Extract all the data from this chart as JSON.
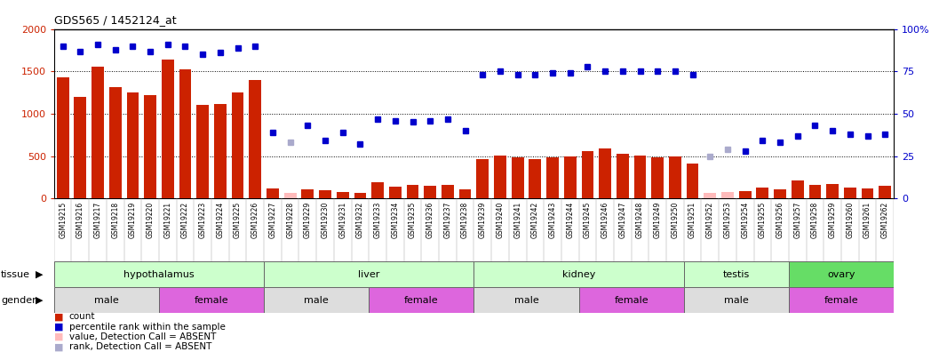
{
  "title": "GDS565 / 1452124_at",
  "samples": [
    "GSM19215",
    "GSM19216",
    "GSM19217",
    "GSM19218",
    "GSM19219",
    "GSM19220",
    "GSM19221",
    "GSM19222",
    "GSM19223",
    "GSM19224",
    "GSM19225",
    "GSM19226",
    "GSM19227",
    "GSM19228",
    "GSM19229",
    "GSM19230",
    "GSM19231",
    "GSM19232",
    "GSM19233",
    "GSM19234",
    "GSM19235",
    "GSM19236",
    "GSM19237",
    "GSM19238",
    "GSM19239",
    "GSM19240",
    "GSM19241",
    "GSM19242",
    "GSM19243",
    "GSM19244",
    "GSM19245",
    "GSM19246",
    "GSM19247",
    "GSM19248",
    "GSM19249",
    "GSM19250",
    "GSM19251",
    "GSM19252",
    "GSM19253",
    "GSM19254",
    "GSM19255",
    "GSM19256",
    "GSM19257",
    "GSM19258",
    "GSM19259",
    "GSM19260",
    "GSM19261",
    "GSM19262"
  ],
  "counts": [
    1430,
    1200,
    1560,
    1310,
    1250,
    1220,
    1640,
    1530,
    1100,
    1120,
    1250,
    1400,
    120,
    65,
    110,
    95,
    80,
    60,
    190,
    140,
    160,
    150,
    155,
    105,
    460,
    510,
    480,
    460,
    480,
    500,
    560,
    590,
    530,
    510,
    490,
    500,
    415,
    65,
    80,
    90,
    130,
    105,
    210,
    155,
    165,
    125,
    115,
    145
  ],
  "percentile_ranks": [
    90,
    87,
    91,
    88,
    90,
    87,
    91,
    90,
    85,
    86,
    89,
    90,
    39,
    33,
    43,
    34,
    39,
    32,
    47,
    46,
    45,
    46,
    47,
    40,
    73,
    75,
    73,
    73,
    74,
    74,
    78,
    75,
    75,
    75,
    75,
    75,
    73,
    25,
    29,
    28,
    34,
    33,
    37,
    43,
    40,
    38,
    37,
    38
  ],
  "absent_call": [
    false,
    false,
    false,
    false,
    false,
    false,
    false,
    false,
    false,
    false,
    false,
    false,
    false,
    true,
    false,
    false,
    false,
    false,
    false,
    false,
    false,
    false,
    false,
    false,
    false,
    false,
    false,
    false,
    false,
    false,
    false,
    false,
    false,
    false,
    false,
    false,
    false,
    true,
    true,
    false,
    false,
    false,
    false,
    false,
    false,
    false,
    false,
    false
  ],
  "tissues": [
    {
      "label": "hypothalamus",
      "start": 0,
      "end": 12,
      "color": "#ccffcc"
    },
    {
      "label": "liver",
      "start": 12,
      "end": 24,
      "color": "#ccffcc"
    },
    {
      "label": "kidney",
      "start": 24,
      "end": 36,
      "color": "#ccffcc"
    },
    {
      "label": "testis",
      "start": 36,
      "end": 42,
      "color": "#ccffcc"
    },
    {
      "label": "ovary",
      "start": 42,
      "end": 48,
      "color": "#66dd66"
    }
  ],
  "genders": [
    {
      "label": "male",
      "start": 0,
      "end": 6,
      "color": "#dddddd"
    },
    {
      "label": "female",
      "start": 6,
      "end": 12,
      "color": "#dd66dd"
    },
    {
      "label": "male",
      "start": 12,
      "end": 18,
      "color": "#dddddd"
    },
    {
      "label": "female",
      "start": 18,
      "end": 24,
      "color": "#dd66dd"
    },
    {
      "label": "male",
      "start": 24,
      "end": 30,
      "color": "#dddddd"
    },
    {
      "label": "female",
      "start": 30,
      "end": 36,
      "color": "#dd66dd"
    },
    {
      "label": "male",
      "start": 36,
      "end": 42,
      "color": "#dddddd"
    },
    {
      "label": "female",
      "start": 42,
      "end": 48,
      "color": "#dd66dd"
    }
  ],
  "bar_color_normal": "#cc2200",
  "bar_color_absent": "#ffbbbb",
  "dot_color_normal": "#0000cc",
  "dot_color_absent": "#aaaacc",
  "ylim_left": [
    0,
    2000
  ],
  "ylim_right": [
    0,
    100
  ],
  "yticks_left": [
    0,
    500,
    1000,
    1500,
    2000
  ],
  "yticks_right": [
    0,
    25,
    50,
    75,
    100
  ],
  "ytick_right_labels": [
    "0",
    "25",
    "50",
    "75",
    "100%"
  ],
  "bg_color": "#ffffff",
  "xtick_bg": "#e0e0e0",
  "legend_items": [
    {
      "color": "#cc2200",
      "label": "count"
    },
    {
      "color": "#0000cc",
      "label": "percentile rank within the sample"
    },
    {
      "color": "#ffbbbb",
      "label": "value, Detection Call = ABSENT"
    },
    {
      "color": "#aaaacc",
      "label": "rank, Detection Call = ABSENT"
    }
  ]
}
